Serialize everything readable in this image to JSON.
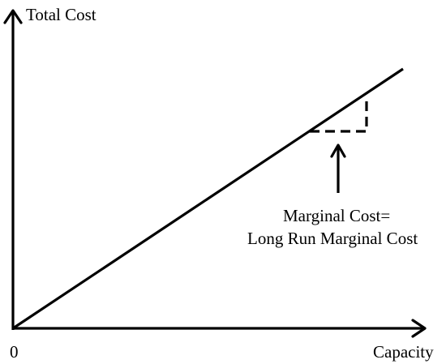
{
  "diagram": {
    "y_axis_label": "Total Cost",
    "x_axis_label": "Capacity",
    "origin_label": "0",
    "annotation": {
      "line1": "Marginal Cost=",
      "line2": "Long Run Marginal Cost"
    }
  }
}
